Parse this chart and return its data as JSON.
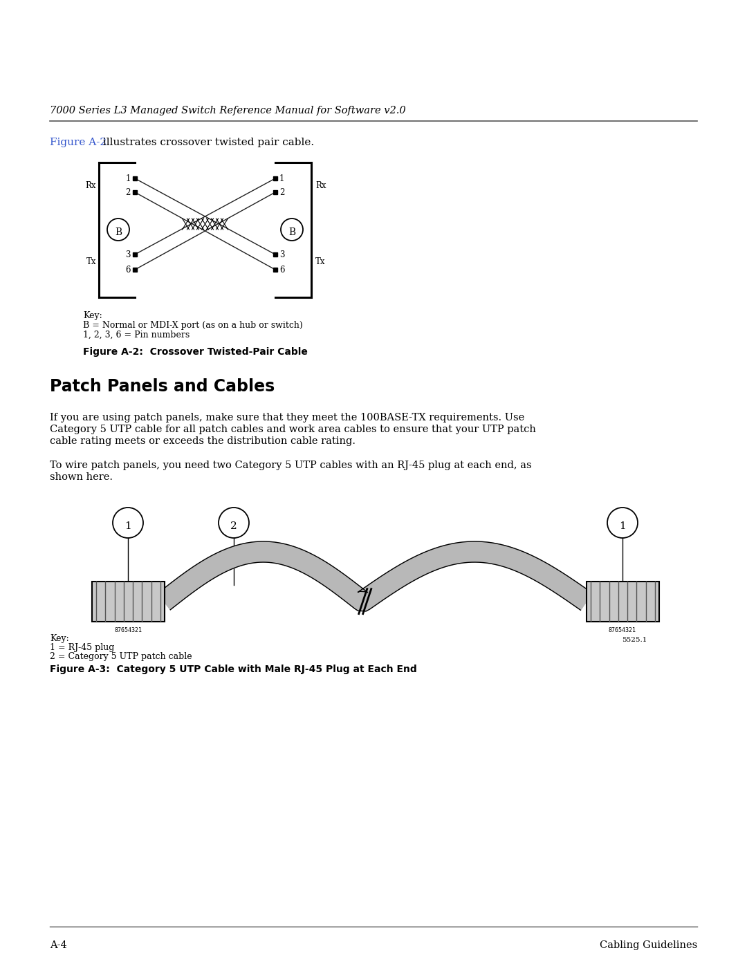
{
  "bg_color": "#ffffff",
  "header_text": "7000 Series L3 Managed Switch Reference Manual for Software v2.0",
  "header_font_size": 10.5,
  "figure_ref_text": "Figure A-2",
  "figure_ref_color": "#3355cc",
  "intro_text": " illustrates crossover twisted pair cable.",
  "intro_font_size": 11,
  "fig_a2_caption": "Figure A-2:  Crossover Twisted-Pair Cable",
  "key_text_a2_line1": "Key:",
  "key_text_a2_line2": "B = Normal or MDI-X port (as on a hub or switch)",
  "key_text_a2_line3": "1, 2, 3, 6 = Pin numbers",
  "section_title": "Patch Panels and Cables",
  "section_title_size": 17,
  "para1_line1": "If you are using patch panels, make sure that they meet the 100BASE-TX requirements. Use",
  "para1_line2": "Category 5 UTP cable for all patch cables and work area cables to ensure that your UTP patch",
  "para1_line3": "cable rating meets or exceeds the distribution cable rating.",
  "para2_line1": "To wire patch panels, you need two Category 5 UTP cables with an RJ-45 plug at each end, as",
  "para2_line2": "shown here.",
  "fig_a3_caption": "Figure A-3:  Category 5 UTP Cable with Male RJ-45 Plug at Each End",
  "key_text_a3_line1": "Key:",
  "key_text_a3_line2": "1 = RJ-45 plug",
  "key_text_a3_line3": "2 = Category 5 UTP patch cable",
  "footer_left": "A-4",
  "footer_right": "Cabling Guidelines",
  "body_font_size": 10.5,
  "small_font_size": 9.0,
  "caption_font_size": 10.0,
  "text_color": "#000000"
}
